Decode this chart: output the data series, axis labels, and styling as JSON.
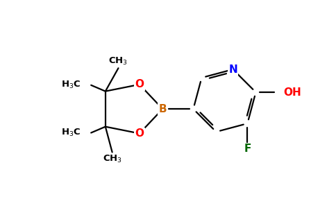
{
  "background_color": "#ffffff",
  "atom_colors": {
    "C": "#000000",
    "N": "#0000ff",
    "O": "#ff0000",
    "B": "#cc6600",
    "F": "#006600",
    "H": "#000000"
  },
  "font_size_atoms": 11,
  "font_size_groups": 9.5,
  "figsize": [
    4.84,
    3.0
  ],
  "dpi": 100
}
